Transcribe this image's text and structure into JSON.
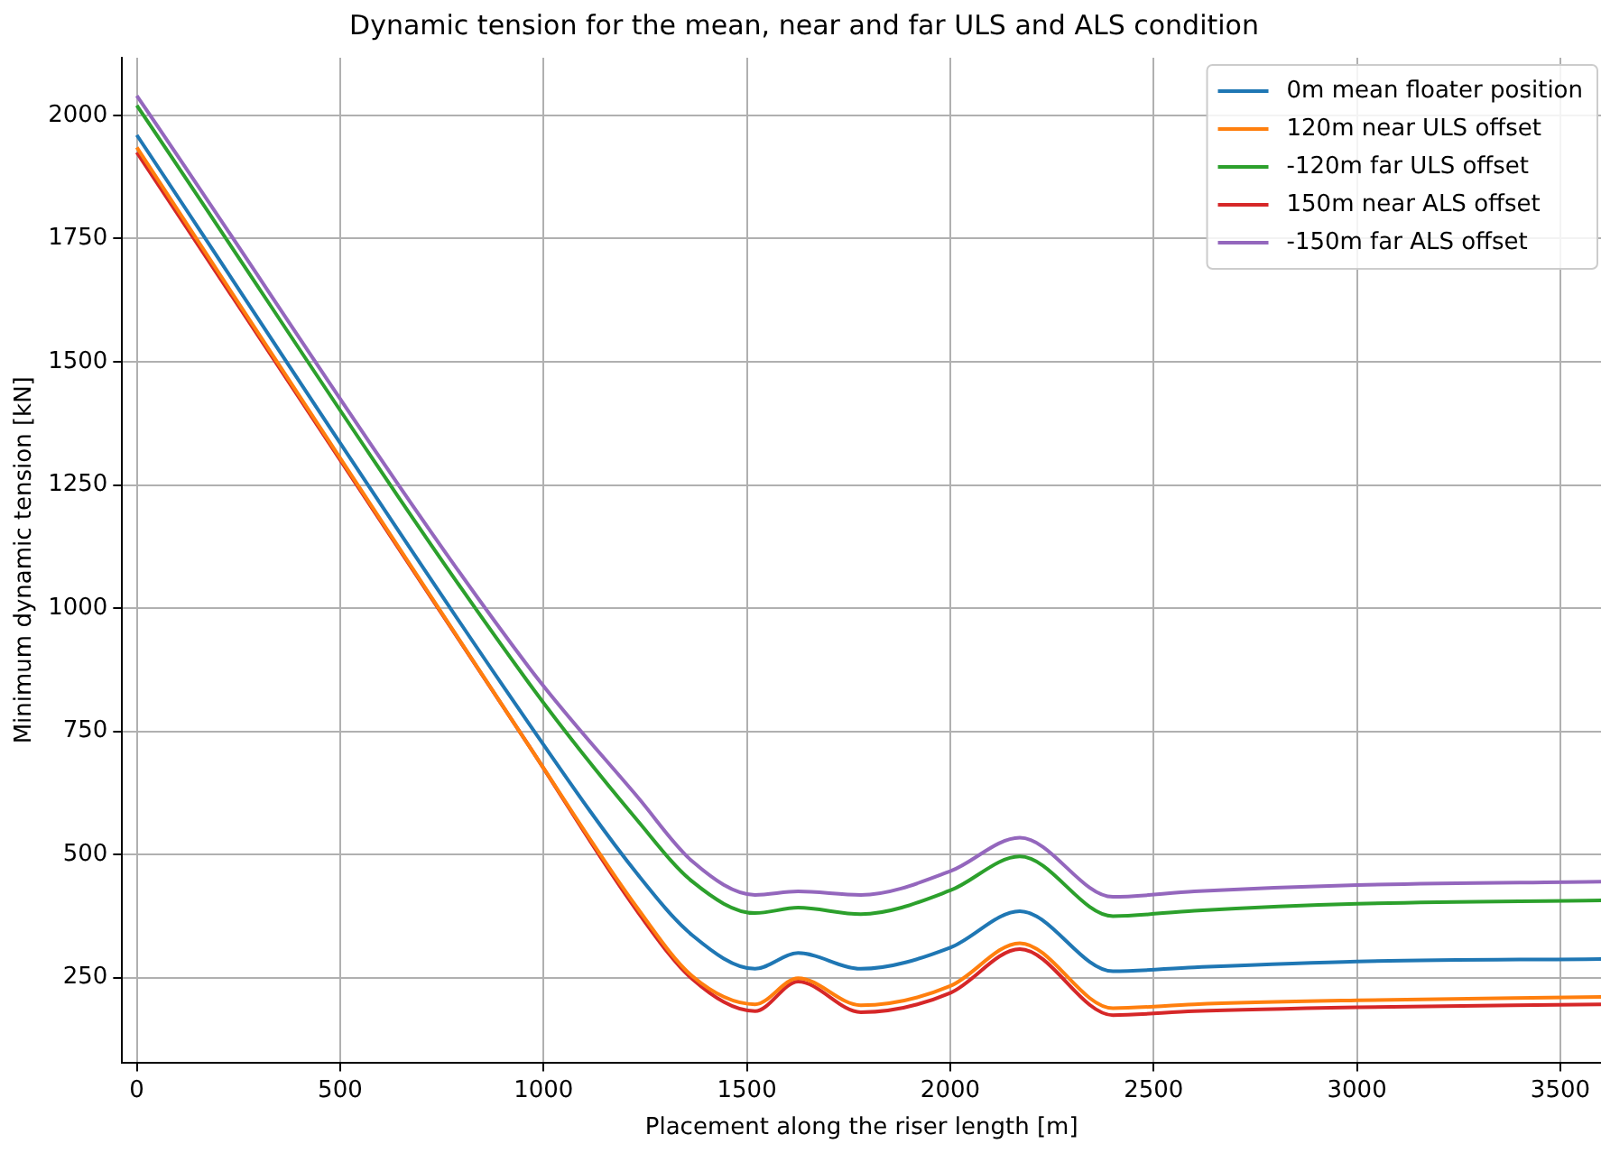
{
  "chart_data": {
    "type": "line",
    "title": "Dynamic tension for the mean, near and far ULS and ALS condition",
    "xlabel": "Placement along the riser length [m]",
    "ylabel": "Minimum dynamic tension [kN]",
    "x": [
      0,
      963,
      1232,
      1366,
      1520,
      1626,
      1780,
      2000,
      2171,
      2400,
      2600,
      3000,
      3600
    ],
    "series": [
      {
        "name": "0m mean floater position",
        "color": "#1f77b4",
        "values": [
          1960,
          767,
          459,
          336,
          268,
          300,
          268,
          311,
          385,
          263,
          271,
          283,
          288
        ]
      },
      {
        "name": "120m near ULS offset",
        "color": "#ff7f0e",
        "values": [
          1935,
          722,
          390,
          253,
          196,
          249,
          194,
          233,
          320,
          188,
          196,
          204,
          211
        ]
      },
      {
        "name": "-120m far ULS offset",
        "color": "#2ca02c",
        "values": [
          2020,
          849,
          568,
          445,
          381,
          392,
          379,
          427,
          496,
          375,
          386,
          400,
          407
        ]
      },
      {
        "name": "150m near ALS offset",
        "color": "#d62728",
        "values": [
          1925,
          722,
          383,
          247,
          182,
          242,
          180,
          219,
          308,
          174,
          182,
          190,
          196
        ]
      },
      {
        "name": "-150m far ALS offset",
        "color": "#9467bd",
        "values": [
          2040,
          881,
          616,
          486,
          418,
          425,
          418,
          466,
          534,
          414,
          425,
          438,
          445
        ]
      }
    ],
    "xlim": [
      -36,
      3600
    ],
    "ylim": [
      78,
      2117
    ],
    "xticks": [
      0,
      500,
      1000,
      1500,
      2000,
      2500,
      3000,
      3500
    ],
    "yticks": [
      250,
      500,
      750,
      1000,
      1250,
      1500,
      1750,
      2000
    ],
    "grid": true,
    "legend": "top right",
    "marker": "none",
    "line_style": "solid"
  }
}
